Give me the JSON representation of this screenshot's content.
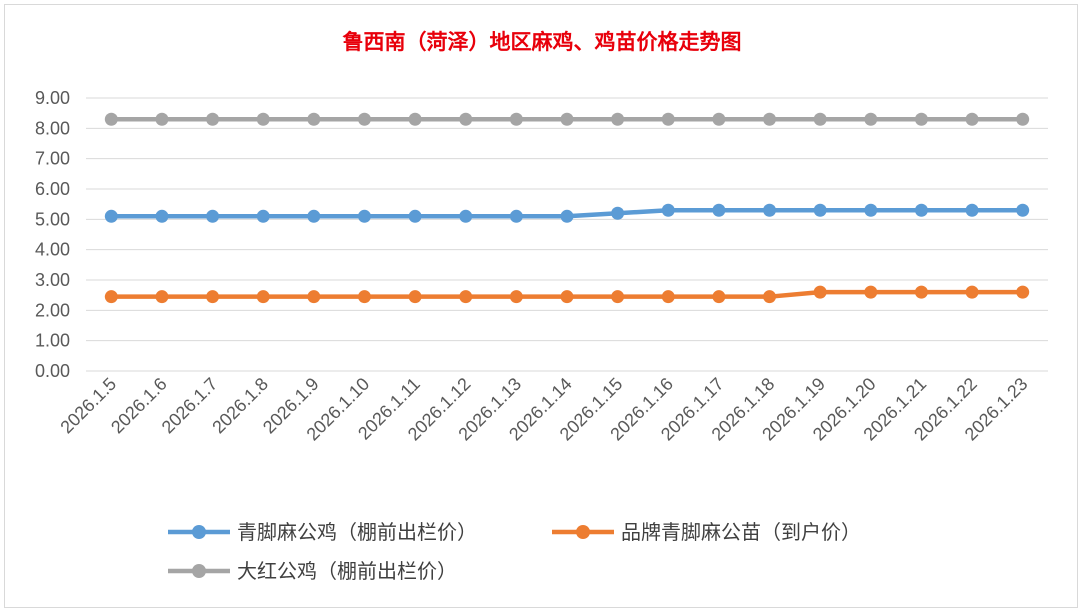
{
  "chart_data": {
    "type": "line",
    "title": "鲁西南（菏泽）地区麻鸡、鸡苗价格走势图",
    "title_color": "#e8000b",
    "xlabel": "",
    "ylabel": "",
    "ylim": [
      0,
      9
    ],
    "yticks": [
      "0.00",
      "1.00",
      "2.00",
      "3.00",
      "4.00",
      "5.00",
      "6.00",
      "7.00",
      "8.00",
      "9.00"
    ],
    "grid": true,
    "legend_position": "bottom",
    "categories": [
      "2026.1.5",
      "2026.1.6",
      "2026.1.7",
      "2026.1.8",
      "2026.1.9",
      "2026.1.10",
      "2026.1.11",
      "2026.1.12",
      "2026.1.13",
      "2026.1.14",
      "2026.1.15",
      "2026.1.16",
      "2026.1.17",
      "2026.1.18",
      "2026.1.19",
      "2026.1.20",
      "2026.1.21",
      "2026.1.22",
      "2026.1.23"
    ],
    "series": [
      {
        "name": "青脚麻公鸡（棚前出栏价）",
        "color": "#5b9bd5",
        "values": [
          5.1,
          5.1,
          5.1,
          5.1,
          5.1,
          5.1,
          5.1,
          5.1,
          5.1,
          5.1,
          5.2,
          5.3,
          5.3,
          5.3,
          5.3,
          5.3,
          5.3,
          5.3,
          5.3
        ]
      },
      {
        "name": "品牌青脚麻公苗（到户价）",
        "color": "#ed7d31",
        "values": [
          2.45,
          2.45,
          2.45,
          2.45,
          2.45,
          2.45,
          2.45,
          2.45,
          2.45,
          2.45,
          2.45,
          2.45,
          2.45,
          2.45,
          2.6,
          2.6,
          2.6,
          2.6,
          2.6
        ]
      },
      {
        "name": "大红公鸡（棚前出栏价）",
        "color": "#a5a5a5",
        "values": [
          8.3,
          8.3,
          8.3,
          8.3,
          8.3,
          8.3,
          8.3,
          8.3,
          8.3,
          8.3,
          8.3,
          8.3,
          8.3,
          8.3,
          8.3,
          8.3,
          8.3,
          8.3,
          8.3
        ]
      }
    ]
  }
}
